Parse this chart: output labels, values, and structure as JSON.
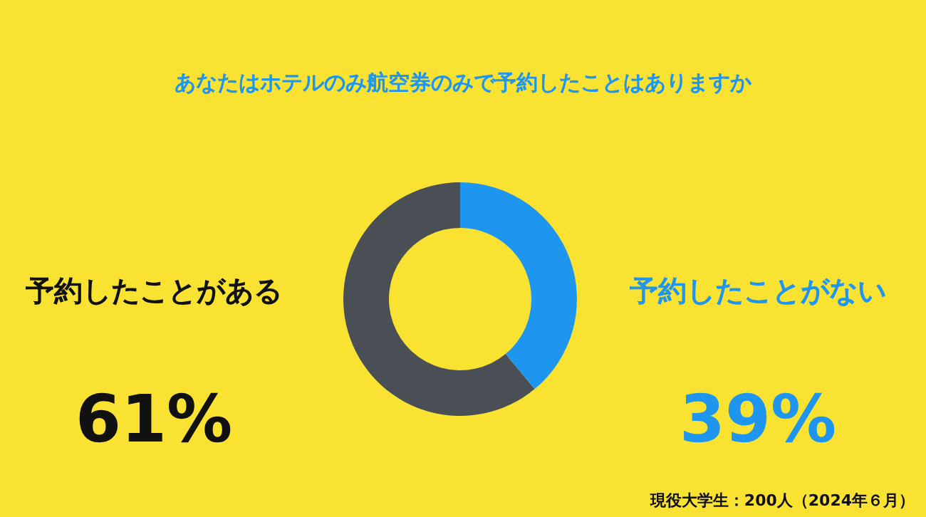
{
  "chart_data": {
    "type": "donut",
    "title": "あなたはホテルのみ航空券のみで予約したことはありますか",
    "categories": [
      "予約したことがある",
      "予約したことがない"
    ],
    "values": [
      61,
      39
    ],
    "colors": [
      "#4a4f55",
      "#1e96f0"
    ],
    "value_labels": [
      "61%",
      "39%"
    ],
    "annotations": [
      "現役大学生：200人（2024年６月）"
    ]
  }
}
